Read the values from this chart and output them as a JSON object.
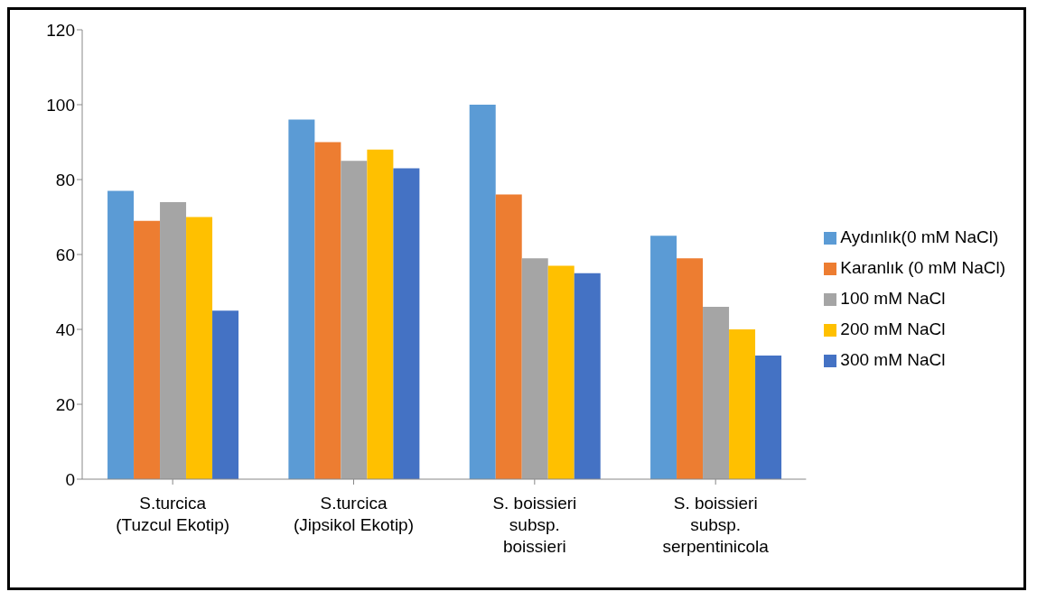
{
  "chart_data": {
    "type": "bar",
    "categories": [
      "S.turcica\n(Tuzcul Ekotip)",
      "S.turcica\n(Jipsikol Ekotip)",
      "S. boissieri\nsubsp.\nboissieri",
      "S. boissieri\nsubsp.\nserpentinicola"
    ],
    "series": [
      {
        "name": "Aydınlık(0 mM NaCl)",
        "color": "#5b9bd5",
        "values": [
          77,
          96,
          100,
          65
        ]
      },
      {
        "name": "Karanlık (0 mM NaCl)",
        "color": "#ed7d31",
        "values": [
          69,
          90,
          76,
          59
        ]
      },
      {
        "name": "100 mM NaCl",
        "color": "#a5a5a5",
        "values": [
          74,
          85,
          59,
          46
        ]
      },
      {
        "name": "200 mM NaCl",
        "color": "#ffc000",
        "values": [
          70,
          88,
          57,
          40
        ]
      },
      {
        "name": "300 mM NaCl",
        "color": "#4472c4",
        "values": [
          45,
          83,
          55,
          33
        ]
      }
    ],
    "ylim": [
      0,
      120
    ],
    "yticks": [
      0,
      20,
      40,
      60,
      80,
      100,
      120
    ],
    "grid": false,
    "legend": "right"
  }
}
